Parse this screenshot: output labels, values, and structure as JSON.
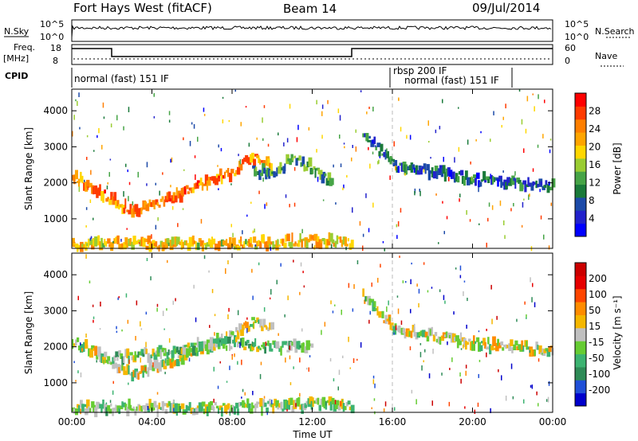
{
  "header": {
    "station": "Fort Hays West (fitACF)",
    "beam": "Beam 14",
    "date": "09/Jul/2014"
  },
  "panels": {
    "nsky_label": "N.Sky",
    "nsearch_label": "N.Search",
    "freq_label_1": "Freq.",
    "freq_label_2": "[MHz]",
    "nave_label": "Nave",
    "cpid_label": "CPID",
    "nsky_ticks": [
      "10^5",
      "10^0"
    ],
    "nsearch_ticks": [
      "10^5",
      "10^0"
    ],
    "freq_ticks": [
      "18",
      "8"
    ],
    "nave_ticks": [
      "60",
      "0"
    ],
    "cpid_segments": [
      {
        "label": "normal (fast) 151 IF",
        "start_hour": 0
      },
      {
        "label": "rbsp 200 IF",
        "start_hour": 16
      },
      {
        "label": "normal (fast) 151 IF",
        "start_hour": 16.3
      }
    ]
  },
  "colorbars": {
    "power": {
      "label": "Power [dB]",
      "ticks": [
        "4",
        "8",
        "12",
        "16",
        "20",
        "24",
        "28"
      ],
      "colors": [
        "#0000ff",
        "#2222cc",
        "#1c4aa8",
        "#1a7a3a",
        "#46a446",
        "#9acd32",
        "#ffd700",
        "#ffa500",
        "#ff7f00",
        "#ff3b00",
        "#ff0000"
      ]
    },
    "velocity": {
      "label": "Velocity [m s⁻¹]",
      "ticks": [
        "200",
        "100",
        "50",
        "15",
        "-15",
        "-50",
        "-100",
        "-200"
      ],
      "colors": [
        "#0000cc",
        "#2050d8",
        "#2e8b57",
        "#3cb371",
        "#66cc33",
        "#c0c0c0",
        "#f5b700",
        "#ff8c00",
        "#ff4500",
        "#e60000",
        "#cc0000"
      ]
    }
  },
  "chart_data": [
    {
      "type": "heatmap",
      "name": "Power",
      "xlabel": "",
      "ylabel": "Slant Range [km]",
      "xlim_hours": [
        0,
        24
      ],
      "ylim_km": [
        180,
        4600
      ],
      "y_ticks": [
        1000,
        2000,
        3000,
        4000
      ],
      "echo_bands": [
        {
          "hours": [
            0,
            1.5,
            3,
            5,
            7,
            8,
            9,
            10
          ],
          "range_km": [
            2200,
            1700,
            1200,
            1600,
            2100,
            2300,
            2700,
            2500
          ],
          "power_db": 24
        },
        {
          "hours": [
            9,
            10,
            11,
            12,
            13
          ],
          "range_km": [
            2400,
            2200,
            2700,
            2400,
            2000
          ],
          "power_db": 12
        },
        {
          "hours": [
            14.5,
            16,
            18,
            20,
            22,
            24
          ],
          "range_km": [
            3400,
            2500,
            2300,
            2100,
            2000,
            1900
          ],
          "power_db": 8
        },
        {
          "hours": [
            0,
            4,
            8,
            12,
            14
          ],
          "range_km": [
            300,
            300,
            300,
            400,
            350
          ],
          "power_db": 20
        }
      ],
      "dashed_marker_hour": 16
    },
    {
      "type": "heatmap",
      "name": "Velocity",
      "xlabel": "Time UT",
      "ylabel": "Slant Range [km]",
      "xlim_hours": [
        0,
        24
      ],
      "ylim_km": [
        180,
        4600
      ],
      "y_ticks": [
        1000,
        2000,
        3000,
        4000
      ],
      "x_ticks": [
        "00:00",
        "04:00",
        "08:00",
        "12:00",
        "16:00",
        "20:00",
        "00:00"
      ],
      "echo_bands": [
        {
          "hours": [
            0,
            1.5,
            3,
            5,
            7,
            8,
            9,
            10
          ],
          "range_km": [
            2200,
            1700,
            1200,
            1600,
            2100,
            2300,
            2700,
            2500
          ],
          "velocity": 0
        },
        {
          "hours": [
            2,
            4,
            6,
            8,
            10,
            12
          ],
          "range_km": [
            1700,
            1800,
            2000,
            2100,
            2000,
            2000
          ],
          "velocity": -50
        },
        {
          "hours": [
            14.5,
            16,
            18,
            20,
            22,
            24
          ],
          "range_km": [
            3400,
            2500,
            2300,
            2100,
            2000,
            1900
          ],
          "velocity": 0
        },
        {
          "hours": [
            0,
            4,
            8,
            12,
            14
          ],
          "range_km": [
            300,
            300,
            300,
            400,
            350
          ],
          "velocity": -30
        }
      ],
      "dashed_marker_hour": 16
    }
  ]
}
